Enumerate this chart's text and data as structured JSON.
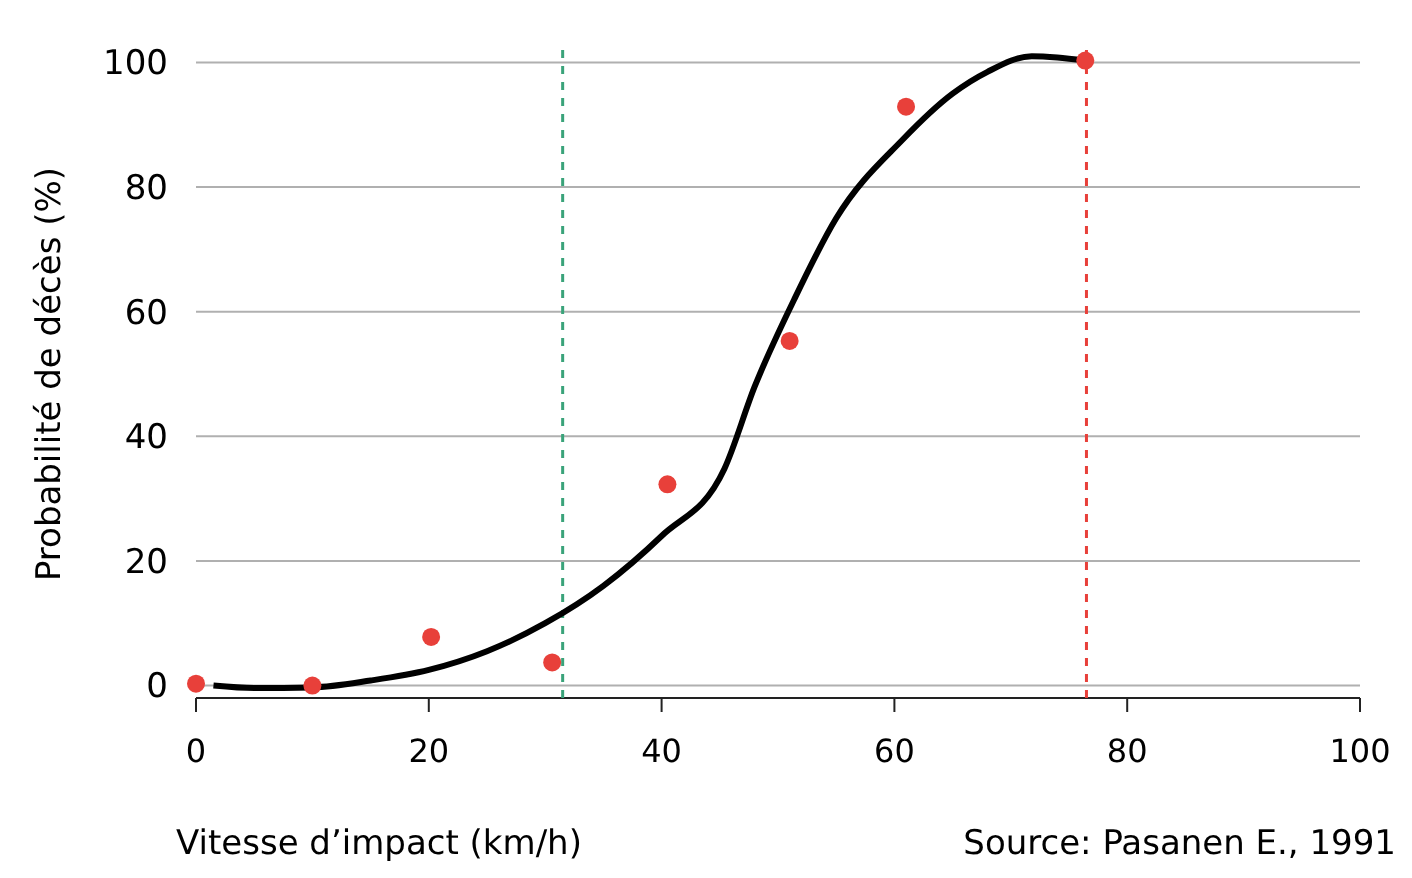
{
  "chart_data": {
    "type": "scatter",
    "xlabel": "Vitesse d’impact (km/h)",
    "ylabel": "Probabilité de décès (%)",
    "annotations": [
      "Source: Pasanen E., 1991"
    ],
    "xlim": [
      0,
      100
    ],
    "xticks": [
      0,
      20,
      40,
      60,
      80,
      100
    ],
    "ylim": [
      -2,
      102
    ],
    "yticks": [
      0,
      20,
      40,
      60,
      80,
      100
    ],
    "grid": "y",
    "series": [
      {
        "color": "#e8403a",
        "marker": "circle",
        "x": [
          0,
          10,
          20.2,
          30.6,
          40.5,
          51,
          61,
          76.4
        ],
        "values": [
          0.3,
          0,
          7.8,
          3.7,
          32.3,
          55.3,
          92.9,
          100.3
        ]
      },
      {
        "type": "line",
        "color": "#000000",
        "marker": "none",
        "line_style": "solid",
        "x": [
          1.5,
          5,
          10,
          15,
          20,
          25,
          30,
          35,
          40,
          45.4,
          48,
          51.4,
          55,
          60.7,
          65,
          68,
          71.8,
          74,
          76.4
        ],
        "values": [
          0,
          -0.4,
          -0.3,
          0.8,
          2.5,
          5.5,
          10,
          16,
          24,
          34.8,
          48,
          62,
          75,
          87.6,
          95,
          98.5,
          101,
          100.8,
          100.3
        ]
      }
    ],
    "ref_lines": [
      {
        "axis": "x",
        "value": 31.5,
        "color": "#3aa37a",
        "line_style": "dashed"
      },
      {
        "axis": "x",
        "value": 76.5,
        "color": "#e8403a",
        "line_style": "dashed"
      }
    ]
  }
}
